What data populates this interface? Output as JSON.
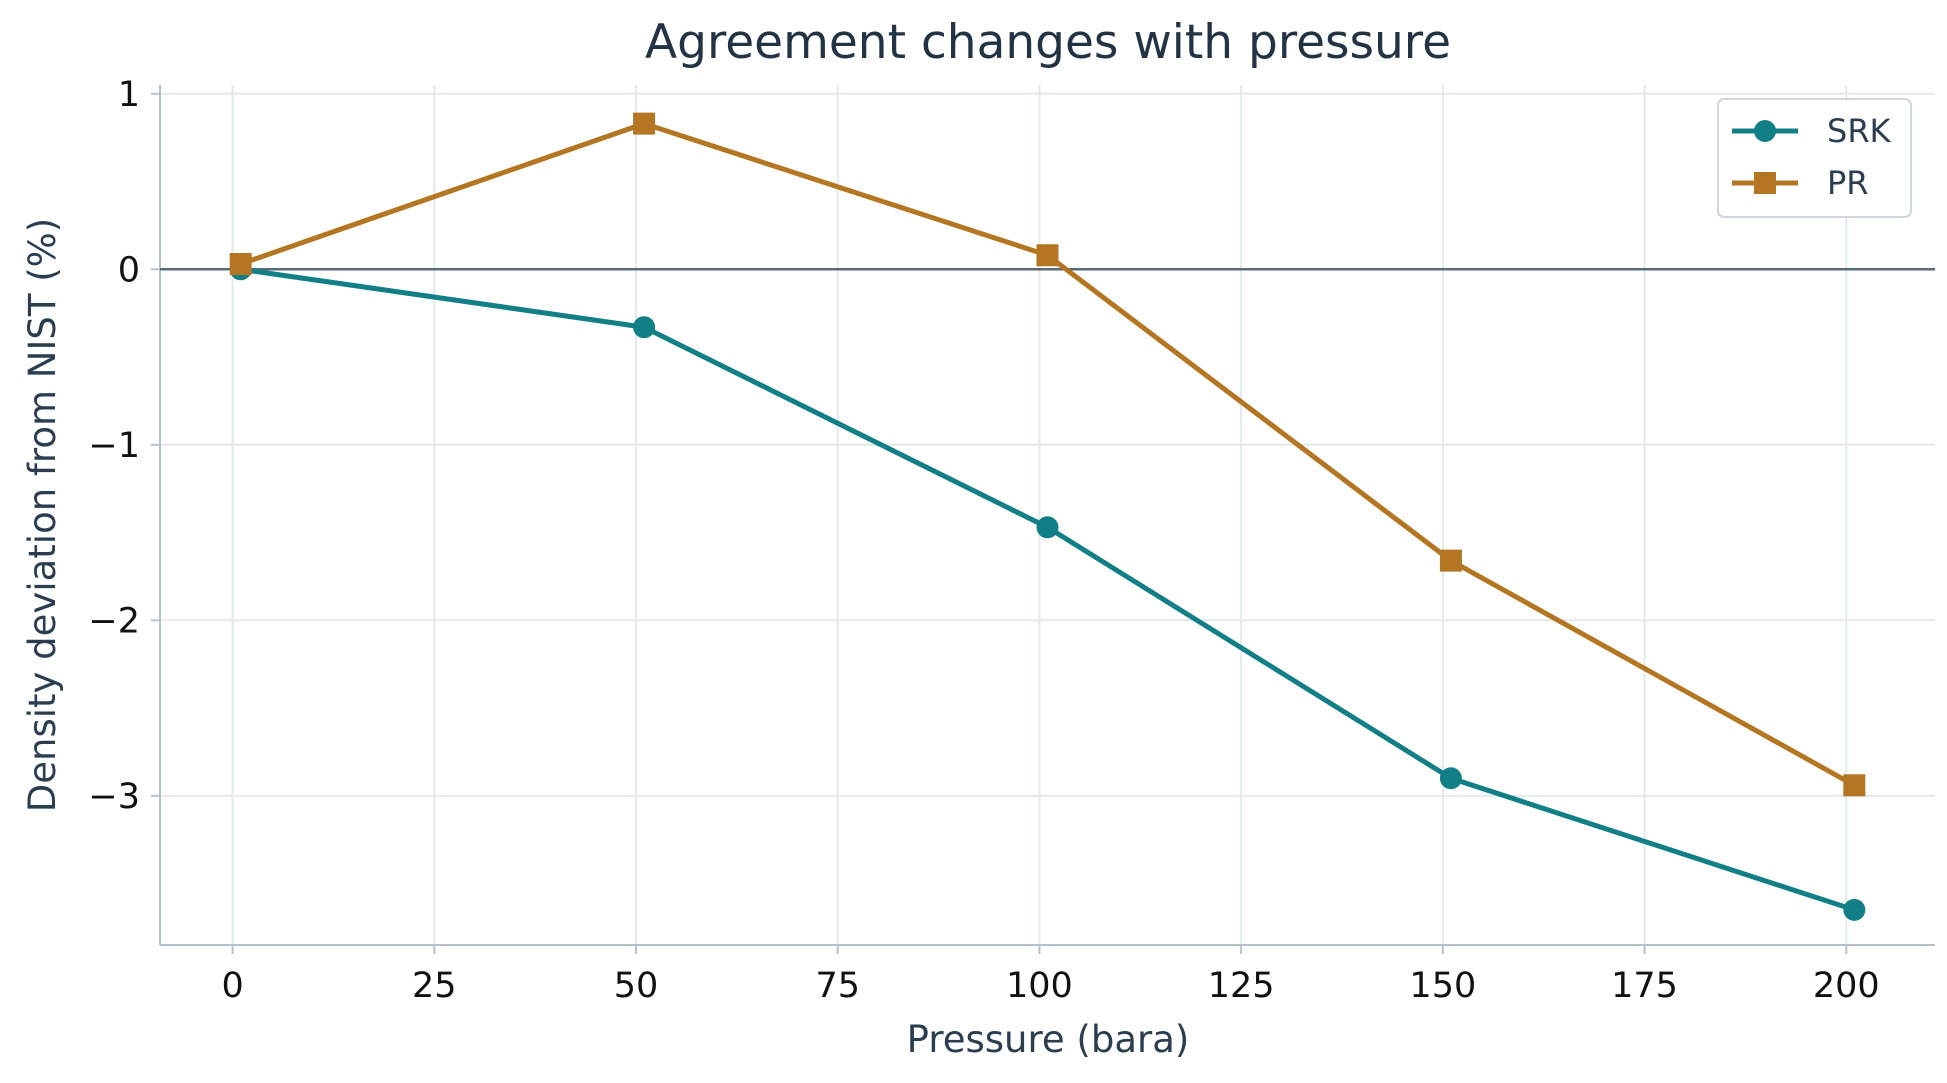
{
  "chart_data": {
    "type": "line",
    "title": "Agreement changes with pressure",
    "xlabel": "Pressure (bara)",
    "ylabel": "Density deviation from NIST (%)",
    "xlim": [
      -9,
      211
    ],
    "ylim": [
      -3.85,
      1.05
    ],
    "xticks": [
      0,
      25,
      50,
      75,
      100,
      125,
      150,
      175,
      200
    ],
    "xtick_labels": [
      "0",
      "25",
      "50",
      "75",
      "100",
      "125",
      "150",
      "175",
      "200"
    ],
    "yticks": [
      1,
      0,
      -1,
      -2,
      -3
    ],
    "ytick_labels": [
      "1",
      "0",
      "−1",
      "−2",
      "−3"
    ],
    "grid": true,
    "reference_line_y": 0,
    "legend_position": "top-right",
    "x": [
      1,
      51,
      101,
      151,
      201
    ],
    "series": [
      {
        "name": "SRK",
        "values": [
          0.0,
          -0.33,
          -1.47,
          -2.9,
          -3.65
        ],
        "color": "#127f86",
        "marker": "circle"
      },
      {
        "name": "PR",
        "values": [
          0.03,
          0.83,
          0.08,
          -1.66,
          -2.94
        ],
        "color": "#b47622",
        "marker": "square"
      }
    ]
  },
  "colors": {
    "grid": "#e4eaea",
    "axis": "#b5c2cc",
    "zero_line": "#5a6b78"
  }
}
